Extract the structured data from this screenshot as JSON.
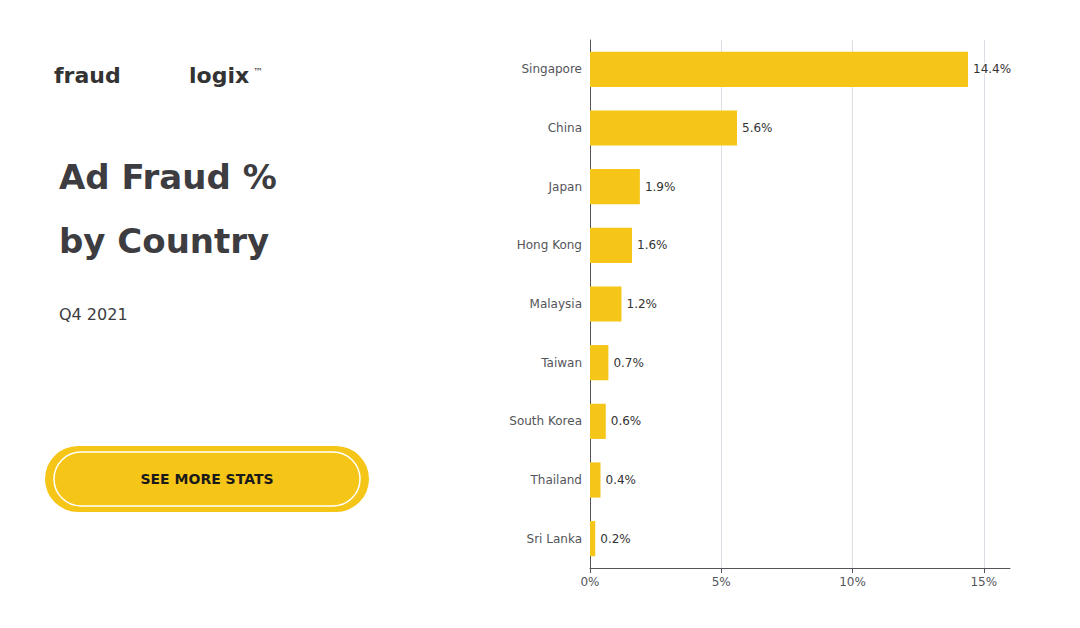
{
  "chart_data": {
    "type": "bar",
    "orientation": "horizontal",
    "title": "Ad Fraud %\nby Country",
    "subtitle": "Q4 2021",
    "annotations": [
      "fraud",
      "logix",
      "™",
      "SEE MORE STATS"
    ],
    "categories": [
      "Singapore",
      "China",
      "Japan",
      "Hong Kong",
      "Malaysia",
      "Taiwan",
      "South Korea",
      "Thailand",
      "Sri Lanka"
    ],
    "values": [
      14.4,
      5.6,
      1.9,
      1.6,
      1.2,
      0.7,
      0.6,
      0.4,
      0.2
    ],
    "value_labels": [
      "14.4%",
      "5.6%",
      "1.9%",
      "1.6%",
      "1.2%",
      "0.7%",
      "0.6%",
      "0.4%",
      "0.2%"
    ],
    "data_labels": true,
    "color": "#F5C518",
    "xlim": [
      0,
      16
    ],
    "xticks": [
      {
        "value": 0,
        "label": "0%"
      },
      {
        "value": 5,
        "label": "5%"
      },
      {
        "value": 10,
        "label": "10%"
      },
      {
        "value": 15,
        "label": "15%"
      }
    ],
    "grid": true
  }
}
